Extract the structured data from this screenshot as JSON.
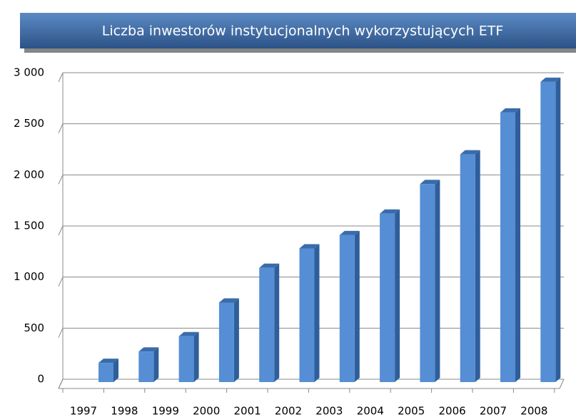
{
  "chart_data": {
    "type": "bar3d",
    "title": "Liczba inwestorów instytucjonalnych wykorzystujących ETF",
    "categories": [
      "1997",
      "1998",
      "1999",
      "2000",
      "2001",
      "2002",
      "2003",
      "2004",
      "2005",
      "2006",
      "2007",
      "2008"
    ],
    "values": [
      160,
      270,
      420,
      750,
      1090,
      1280,
      1410,
      1620,
      1910,
      2200,
      2610,
      2910
    ],
    "color": "#558ed5",
    "ylim": [
      0,
      3000
    ],
    "yticks": [
      0,
      500,
      {
        "value": 1000,
        "label": "1 000"
      },
      {
        "value": 1500,
        "label": "1 500"
      },
      {
        "value": 2000,
        "label": "2 000"
      },
      {
        "value": 2500,
        "label": "2 500"
      },
      {
        "value": 3000,
        "label": "3 000"
      }
    ],
    "grid": true
  }
}
